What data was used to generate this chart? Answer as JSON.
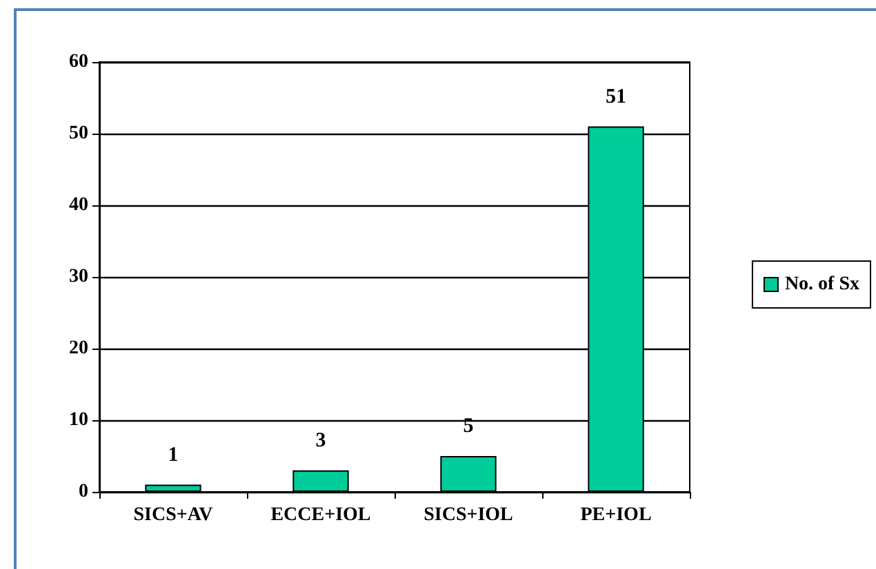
{
  "chart_data": {
    "type": "bar",
    "categories": [
      "SICS+AV",
      "ECCE+IOL",
      "SICS+IOL",
      "PE+IOL"
    ],
    "series": [
      {
        "name": "No. of Sx",
        "color": "#00cc99",
        "values": [
          1,
          3,
          5,
          51
        ]
      }
    ],
    "ylim": [
      0,
      60
    ],
    "yticks": [
      0,
      10,
      20,
      30,
      40,
      50,
      60
    ],
    "grid": "y",
    "legend": "right",
    "data_labels": true
  }
}
